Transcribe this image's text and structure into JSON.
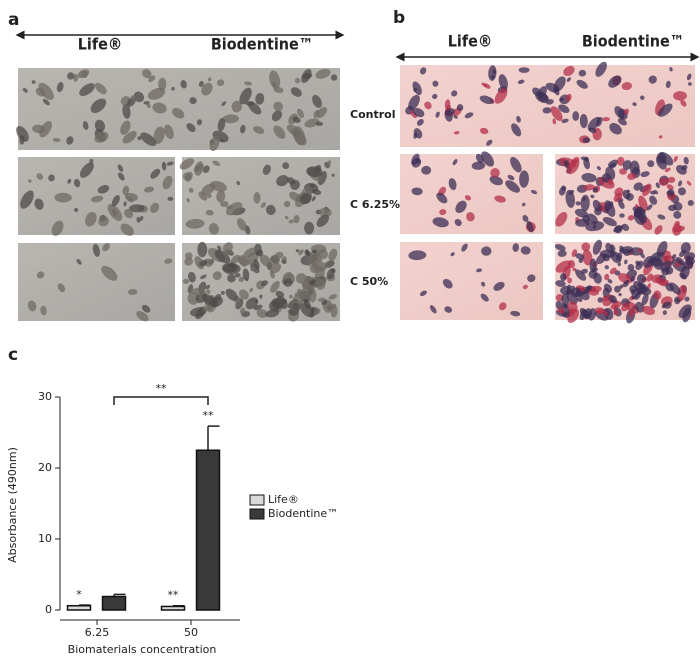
{
  "panel_a": {
    "label": "a",
    "columns": [
      "Life®",
      "Biodentine™"
    ],
    "rows": [
      "Control",
      "C 6.25%",
      "C 50%"
    ]
  },
  "panel_b": {
    "label": "b",
    "columns": [
      "Life®",
      "Biodentine™"
    ]
  },
  "chart_data": {
    "type": "bar",
    "label": "c",
    "y_label": "Absorbance (490nm)",
    "x_label": "Biomaterials concentration",
    "categories": [
      "6.25",
      "50"
    ],
    "series": [
      {
        "name": "Life®",
        "color": "#d9d9d9",
        "values": [
          0.6,
          0.5
        ],
        "errors": [
          0.1,
          0.1
        ],
        "significance": [
          "*",
          "**"
        ]
      },
      {
        "name": "Biodentine™",
        "color": "#3a3a3a",
        "values": [
          1.9,
          22.5
        ],
        "errors": [
          0.3,
          3.4
        ],
        "significance": [
          null,
          "**"
        ]
      }
    ],
    "bracket_label": "**",
    "ylim": [
      0,
      30
    ],
    "yticks": [
      0,
      10,
      20,
      30
    ],
    "legend": "right"
  }
}
